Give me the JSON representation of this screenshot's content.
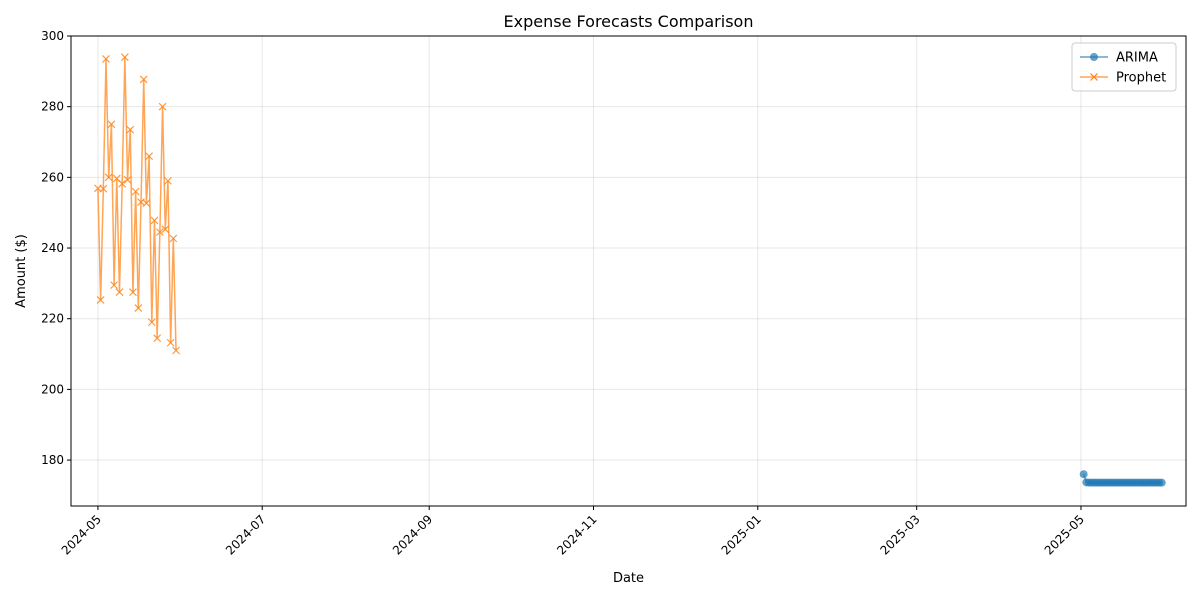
{
  "chart_data": {
    "type": "line",
    "title": "Expense Forecasts Comparison",
    "xlabel": "Date",
    "ylabel": "Amount ($)",
    "xlim": [
      "2024-04-21",
      "2025-06-09"
    ],
    "ylim": [
      167,
      300
    ],
    "x_ticks": [
      "2024-05",
      "2024-07",
      "2024-09",
      "2024-11",
      "2025-01",
      "2025-03",
      "2025-05"
    ],
    "y_ticks": [
      180,
      200,
      220,
      240,
      260,
      280,
      300
    ],
    "grid": true,
    "legend_position": "top-right",
    "series": [
      {
        "name": "ARIMA",
        "color": "#1f77b4",
        "marker": "circle",
        "x": [
          "2025-05-02",
          "2025-05-03",
          "2025-05-04",
          "2025-05-05",
          "2025-05-06",
          "2025-05-07",
          "2025-05-08",
          "2025-05-09",
          "2025-05-10",
          "2025-05-11",
          "2025-05-12",
          "2025-05-13",
          "2025-05-14",
          "2025-05-15",
          "2025-05-16",
          "2025-05-17",
          "2025-05-18",
          "2025-05-19",
          "2025-05-20",
          "2025-05-21",
          "2025-05-22",
          "2025-05-23",
          "2025-05-24",
          "2025-05-25",
          "2025-05-26",
          "2025-05-27",
          "2025-05-28",
          "2025-05-29",
          "2025-05-30",
          "2025-05-31"
        ],
        "y": [
          176.0,
          173.7,
          173.6,
          173.6,
          173.6,
          173.6,
          173.6,
          173.6,
          173.6,
          173.6,
          173.6,
          173.6,
          173.6,
          173.6,
          173.6,
          173.6,
          173.6,
          173.6,
          173.6,
          173.6,
          173.6,
          173.6,
          173.6,
          173.6,
          173.6,
          173.6,
          173.6,
          173.6,
          173.6,
          173.6
        ]
      },
      {
        "name": "Prophet",
        "color": "#ff7f0e",
        "marker": "x",
        "x": [
          "2024-05-01",
          "2024-05-02",
          "2024-05-03",
          "2024-05-04",
          "2024-05-05",
          "2024-05-06",
          "2024-05-07",
          "2024-05-08",
          "2024-05-09",
          "2024-05-10",
          "2024-05-11",
          "2024-05-12",
          "2024-05-13",
          "2024-05-14",
          "2024-05-15",
          "2024-05-16",
          "2024-05-17",
          "2024-05-18",
          "2024-05-19",
          "2024-05-20",
          "2024-05-21",
          "2024-05-22",
          "2024-05-23",
          "2024-05-24",
          "2024-05-25",
          "2024-05-26",
          "2024-05-27",
          "2024-05-28",
          "2024-05-29",
          "2024-05-30"
        ],
        "y": [
          256.9,
          225.3,
          256.8,
          293.5,
          260.0,
          275.0,
          229.5,
          259.7,
          227.5,
          258.2,
          294.0,
          259.3,
          273.5,
          227.5,
          256.0,
          223.0,
          253.0,
          287.7,
          252.7,
          266.0,
          219.0,
          247.8,
          214.5,
          244.5,
          280.0,
          245.3,
          259.0,
          213.2,
          242.7,
          211.0
        ]
      }
    ]
  }
}
